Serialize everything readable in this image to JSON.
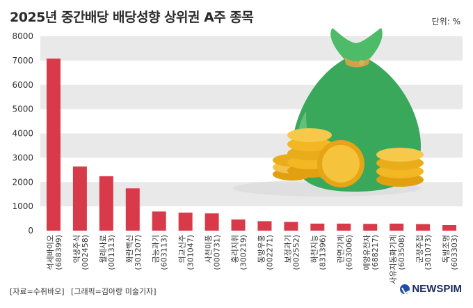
{
  "title": "2025년 중간배당 배당성향 상위권 A주 종목",
  "unit": "단위: %",
  "footer": {
    "source": "[자료=수쥐바오]",
    "graphic": "[그래픽=김아랑 미술기자]"
  },
  "brand": "NEWSPIM",
  "colors": {
    "bar": "#d93a4a",
    "band": "#e9e9e9",
    "bag": "#3aa85a",
    "coin": "#f2b722"
  },
  "chart_data": {
    "type": "bar",
    "title": "2025년 중간배당 배당성향 상위권 A주 종목",
    "ylabel": "",
    "ylim": [
      0,
      8000
    ],
    "yticks": [
      0,
      1000,
      2000,
      3000,
      4000,
      5000,
      6000,
      7000,
      8000
    ],
    "grid": "horizontal bands",
    "categories": [
      {
        "name": "석세바이오",
        "code": "(688399)"
      },
      {
        "name": "익생주식",
        "code": "(002458)"
      },
      {
        "name": "윌레사료",
        "code": "(001313)"
      },
      {
        "name": "화란백신",
        "code": "(301207)"
      },
      {
        "name": "금능과기",
        "code": "(603113)"
      },
      {
        "name": "의교신주",
        "code": "(301047)"
      },
      {
        "name": "사천미풍",
        "code": "(000731)"
      },
      {
        "name": "홍리지휘",
        "code": "(300219)"
      },
      {
        "name": "동방우홍",
        "code": "(002271)"
      },
      {
        "name": "보정과기",
        "code": "(002552)"
      },
      {
        "name": "하천지능",
        "code": "(831396)"
      },
      {
        "name": "란면기계",
        "code": "(603006)"
      },
      {
        "name": "예앙유전자",
        "code": "(688217)"
      },
      {
        "name": "사유지동화기계",
        "code": "(603508)"
      },
      {
        "name": "군정주접",
        "code": "(301073)"
      },
      {
        "name": "독방조명",
        "code": "(603303)"
      }
    ],
    "values": [
      7080,
      2640,
      2240,
      1740,
      790,
      740,
      710,
      460,
      390,
      360,
      290,
      290,
      280,
      290,
      270,
      230
    ]
  }
}
